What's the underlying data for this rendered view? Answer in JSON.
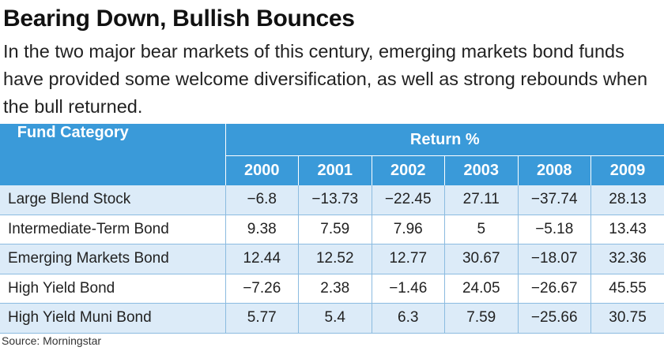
{
  "title": "Bearing Down, Bullish Bounces",
  "subtitle": "In the two major bear markets of this century, emerging markets bond funds have provided some welcome diversification, as well as strong rebounds when the bull returned.",
  "table": {
    "fund_category_header": "Fund Category",
    "return_header": "Return %",
    "years": [
      "2000",
      "2001",
      "2002",
      "2003",
      "2008",
      "2009"
    ],
    "rows": [
      {
        "name": "Large Blend Stock",
        "values": [
          "−6.8",
          "−13.73",
          "−22.45",
          "27.11",
          "−37.74",
          "28.13"
        ]
      },
      {
        "name": "Intermediate-Term Bond",
        "values": [
          "9.38",
          "7.59",
          "7.96",
          "5",
          "−5.18",
          "13.43"
        ]
      },
      {
        "name": "Emerging Markets Bond",
        "values": [
          "12.44",
          "12.52",
          "12.77",
          "30.67",
          "−18.07",
          "32.36"
        ]
      },
      {
        "name": "High Yield Bond",
        "values": [
          "−7.26",
          "2.38",
          "−1.46",
          "24.05",
          "−26.67",
          "45.55"
        ]
      },
      {
        "name": "High Yield Muni Bond",
        "values": [
          "5.77",
          "5.4",
          "6.3",
          "7.59",
          "−25.66",
          "30.75"
        ]
      }
    ],
    "header_color": "#3a9ad9",
    "stripe_color": "#dcebf8"
  },
  "source": "Source: Morningstar"
}
